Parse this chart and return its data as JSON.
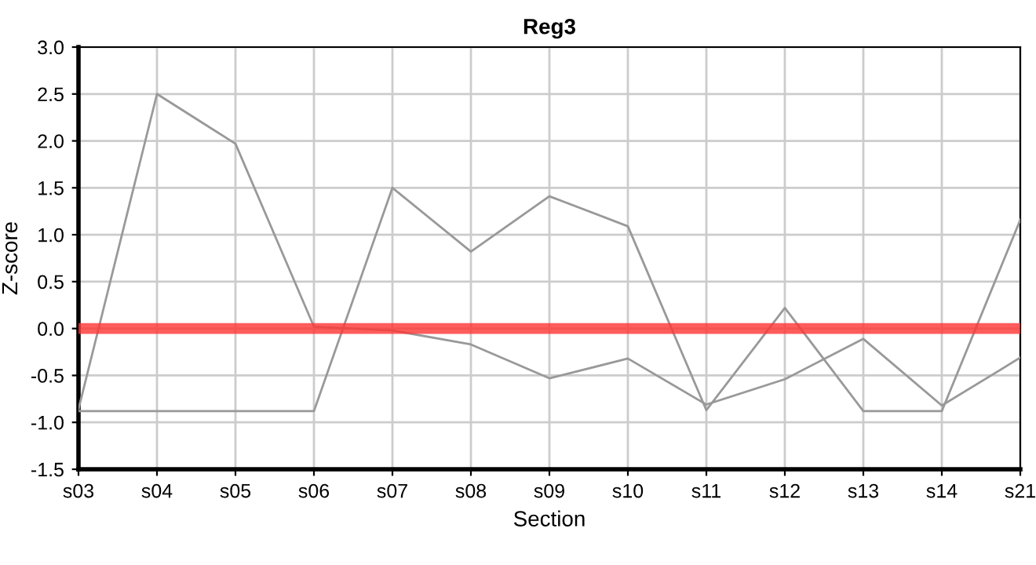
{
  "chart_data": {
    "type": "line",
    "title": "Reg3",
    "xlabel": "Section",
    "ylabel": "Z-score",
    "categories": [
      "s03",
      "s04",
      "s05",
      "s06",
      "s07",
      "s08",
      "s09",
      "s10",
      "s11",
      "s12",
      "s13",
      "s14",
      "s21"
    ],
    "series": [
      {
        "color": "#999999",
        "values": [
          -0.86,
          2.5,
          1.97,
          0.02,
          -0.02,
          -0.17,
          -0.53,
          -0.32,
          -0.81,
          -0.54,
          -0.11,
          -0.82,
          -0.31
        ]
      },
      {
        "color": "#999999",
        "values": [
          -0.88,
          -0.88,
          -0.88,
          -0.88,
          1.5,
          0.82,
          1.41,
          1.09,
          -0.87,
          0.22,
          -0.88,
          -0.88,
          1.16
        ]
      }
    ],
    "ylim": [
      -1.5,
      3.0
    ],
    "yticks": [
      {
        "value": -1.5,
        "label": "-1.5"
      },
      {
        "value": -1.0,
        "label": "-1.0"
      },
      {
        "value": -0.5,
        "label": "-0.5"
      },
      {
        "value": 0.0,
        "label": "0.0"
      },
      {
        "value": 0.5,
        "label": "0.5"
      },
      {
        "value": 1.0,
        "label": "1.0"
      },
      {
        "value": 1.5,
        "label": "1.5"
      },
      {
        "value": 2.0,
        "label": "2.0"
      },
      {
        "value": 2.5,
        "label": "2.5"
      },
      {
        "value": 3.0,
        "label": "3.0"
      }
    ],
    "ref_lines": [
      {
        "axis": "y",
        "value": 0,
        "color": "#ff3333"
      }
    ],
    "grid": true,
    "legend": false,
    "marker": "none",
    "line_style": "solid"
  }
}
